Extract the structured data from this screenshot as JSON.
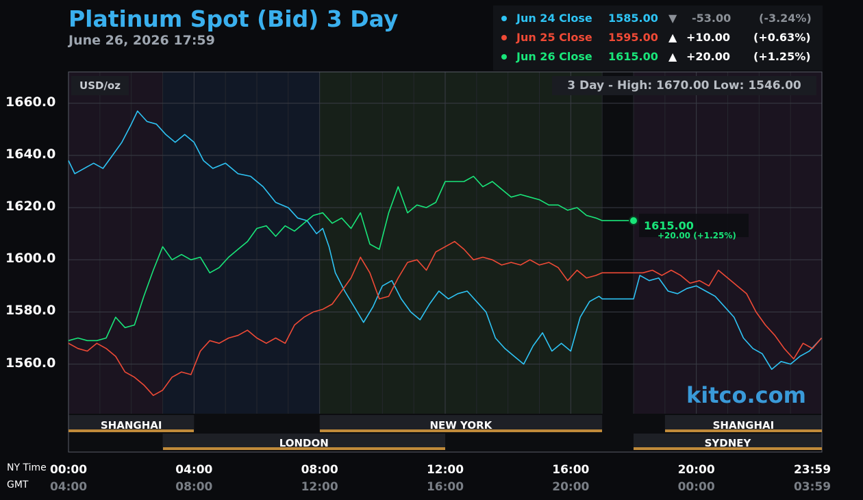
{
  "header": {
    "title": "Platinum Spot (Bid) 3 Day",
    "subtitle": "June 26, 2026 17:59"
  },
  "legend": [
    {
      "label": "Jun 24 Close",
      "price": "1585.00",
      "arrow": "▼",
      "change": "-53.00",
      "pct": "(-3.24%)",
      "color": "#2ec4f5",
      "change_color": "#8c9198"
    },
    {
      "label": "Jun 25 Close",
      "price": "1595.00",
      "arrow": "▲",
      "change": "+10.00",
      "pct": "(+0.63%)",
      "color": "#f04a36",
      "change_color": "#ffffff"
    },
    {
      "label": "Jun 26 Close",
      "price": "1615.00",
      "arrow": "▲",
      "change": "+20.00",
      "pct": "(+1.25%)",
      "color": "#19e67a",
      "change_color": "#ffffff"
    }
  ],
  "panel": {
    "unit": "USD/oz",
    "high_low": "3 Day - High: 1670.00  Low: 1546.00",
    "watermark": "kitco.com",
    "end_price": "1615.00",
    "end_change": "+20.00 (+1.25%)"
  },
  "time_axis": {
    "ny_label": "NY Time",
    "gmt_label": "GMT",
    "ny": [
      "00:00",
      "04:00",
      "08:00",
      "12:00",
      "16:00",
      "20:00",
      "23:59"
    ],
    "gmt": [
      "04:00",
      "08:00",
      "12:00",
      "16:00",
      "20:00",
      "00:00",
      "03:59"
    ]
  },
  "sessions": {
    "top": [
      {
        "name": "SHANGHAI",
        "start": 0,
        "end": 4
      },
      {
        "name": "NEW YORK",
        "start": 8,
        "end": 17
      },
      {
        "name": "SHANGHAI",
        "start": 19,
        "end": 24
      }
    ],
    "bottom": [
      {
        "name": "LONDON",
        "start": 3,
        "end": 12
      },
      {
        "name": "SYDNEY",
        "start": 18,
        "end": 24
      }
    ]
  },
  "colors": {
    "jun24": "#2ec4f5",
    "jun25": "#f04a36",
    "jun26": "#19e67a",
    "title": "#3ab0ee",
    "session_bar": "#c08a3a"
  },
  "chart_data": {
    "type": "line",
    "title": "Platinum Spot (Bid) 3 Day",
    "ylabel": "USD/oz",
    "xlabel": "",
    "x_unit": "NY time (hours)",
    "xlim": [
      0,
      24
    ],
    "ylim": [
      1541,
      1672
    ],
    "yticks": [
      1560,
      1580,
      1600,
      1620,
      1640,
      1660
    ],
    "grid": true,
    "legend_position": "top-right",
    "series": [
      {
        "name": "Jun 24 Close",
        "x": [
          0,
          0.2,
          0.5,
          0.8,
          1.1,
          1.4,
          1.7,
          2.0,
          2.2,
          2.5,
          2.8,
          3.1,
          3.4,
          3.7,
          4.0,
          4.3,
          4.6,
          5.0,
          5.4,
          5.8,
          6.2,
          6.6,
          7.0,
          7.3,
          7.6,
          7.9,
          8.1,
          8.3,
          8.5,
          8.8,
          9.1,
          9.4,
          9.7,
          10.0,
          10.3,
          10.6,
          10.9,
          11.2,
          11.5,
          11.8,
          12.1,
          12.4,
          12.7,
          13.0,
          13.3,
          13.6,
          13.9,
          14.2,
          14.5,
          14.8,
          15.1,
          15.4,
          15.7,
          16.0,
          16.3,
          16.6,
          16.9,
          17.0,
          18.0,
          18.2,
          18.5,
          18.8,
          19.1,
          19.4,
          19.7,
          20.0,
          20.3,
          20.6,
          20.9,
          21.2,
          21.5,
          21.8,
          22.1,
          22.4,
          22.7,
          23.0,
          23.3,
          23.6,
          23.99
        ],
        "values": [
          1638,
          1633,
          1635,
          1637,
          1635,
          1640,
          1645,
          1652,
          1657,
          1653,
          1652,
          1648,
          1645,
          1648,
          1645,
          1638,
          1635,
          1637,
          1633,
          1632,
          1628,
          1622,
          1620,
          1616,
          1615,
          1610,
          1612,
          1605,
          1595,
          1588,
          1582,
          1576,
          1582,
          1590,
          1592,
          1585,
          1580,
          1577,
          1583,
          1588,
          1585,
          1587,
          1588,
          1584,
          1580,
          1570,
          1566,
          1563,
          1560,
          1567,
          1572,
          1565,
          1568,
          1565,
          1578,
          1584,
          1586,
          1585,
          1585,
          1594,
          1592,
          1593,
          1588,
          1587,
          1589,
          1590,
          1588,
          1586,
          1582,
          1578,
          1570,
          1566,
          1564,
          1558,
          1561,
          1560,
          1563,
          1565,
          1570
        ]
      },
      {
        "name": "Jun 25 Close",
        "x": [
          0,
          0.3,
          0.6,
          0.9,
          1.2,
          1.5,
          1.8,
          2.1,
          2.4,
          2.7,
          3.0,
          3.3,
          3.6,
          3.9,
          4.2,
          4.5,
          4.8,
          5.1,
          5.4,
          5.7,
          6.0,
          6.3,
          6.6,
          6.9,
          7.2,
          7.5,
          7.8,
          8.1,
          8.4,
          8.7,
          9.0,
          9.3,
          9.6,
          9.9,
          10.2,
          10.5,
          10.8,
          11.1,
          11.4,
          11.7,
          12.0,
          12.3,
          12.6,
          12.9,
          13.2,
          13.5,
          13.8,
          14.1,
          14.4,
          14.7,
          15.0,
          15.3,
          15.6,
          15.9,
          16.2,
          16.5,
          16.8,
          17.0,
          18.0,
          18.3,
          18.6,
          18.9,
          19.2,
          19.5,
          19.8,
          20.1,
          20.4,
          20.7,
          21.0,
          21.3,
          21.6,
          21.9,
          22.2,
          22.5,
          22.8,
          23.1,
          23.4,
          23.7,
          23.99
        ],
        "values": [
          1568,
          1566,
          1565,
          1568,
          1566,
          1563,
          1557,
          1555,
          1552,
          1548,
          1550,
          1555,
          1557,
          1556,
          1565,
          1569,
          1568,
          1570,
          1571,
          1573,
          1570,
          1568,
          1570,
          1568,
          1575,
          1578,
          1580,
          1581,
          1583,
          1588,
          1593,
          1601,
          1595,
          1585,
          1586,
          1593,
          1599,
          1600,
          1596,
          1603,
          1605,
          1607,
          1604,
          1600,
          1601,
          1600,
          1598,
          1599,
          1598,
          1600,
          1598,
          1599,
          1597,
          1592,
          1596,
          1593,
          1594,
          1595,
          1595,
          1595,
          1596,
          1594,
          1596,
          1594,
          1591,
          1592,
          1590,
          1596,
          1593,
          1590,
          1587,
          1580,
          1575,
          1571,
          1566,
          1562,
          1568,
          1566,
          1570
        ]
      },
      {
        "name": "Jun 26 Close",
        "x": [
          0,
          0.3,
          0.6,
          0.9,
          1.2,
          1.5,
          1.8,
          2.1,
          2.4,
          2.7,
          3.0,
          3.3,
          3.6,
          3.9,
          4.2,
          4.5,
          4.8,
          5.1,
          5.4,
          5.7,
          6.0,
          6.3,
          6.6,
          6.9,
          7.2,
          7.5,
          7.8,
          8.1,
          8.4,
          8.7,
          9.0,
          9.3,
          9.6,
          9.9,
          10.2,
          10.5,
          10.8,
          11.1,
          11.4,
          11.7,
          12.0,
          12.3,
          12.6,
          12.9,
          13.2,
          13.5,
          13.8,
          14.1,
          14.4,
          14.7,
          15.0,
          15.3,
          15.6,
          15.9,
          16.2,
          16.5,
          16.8,
          17.0,
          18.0
        ],
        "values": [
          1569,
          1570,
          1569,
          1569,
          1570,
          1578,
          1574,
          1575,
          1586,
          1596,
          1605,
          1600,
          1602,
          1600,
          1601,
          1595,
          1597,
          1601,
          1604,
          1607,
          1612,
          1613,
          1609,
          1613,
          1611,
          1614,
          1617,
          1618,
          1614,
          1616,
          1612,
          1618,
          1606,
          1604,
          1618,
          1628,
          1618,
          1621,
          1620,
          1622,
          1630,
          1630,
          1630,
          1632,
          1628,
          1630,
          1627,
          1624,
          1625,
          1624,
          1623,
          1621,
          1621,
          1619,
          1620,
          1617,
          1616,
          1615,
          1615
        ]
      }
    ]
  }
}
